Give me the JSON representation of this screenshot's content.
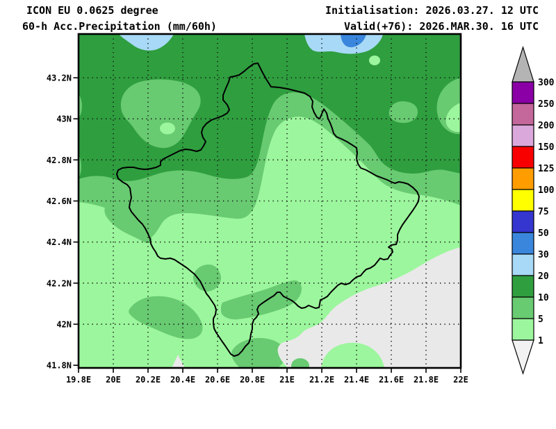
{
  "header": {
    "model": "ICON EU 0.0625 degree",
    "product": "60-h Acc.Precipitation (mm/60h)",
    "initialisation": "Initialisation: 2026.03.27. 12 UTC",
    "valid": "Valid(+76): 2026.MAR.30. 16 UTC"
  },
  "map": {
    "lat_ticks": [
      "43.2N",
      "43N",
      "42.8N",
      "42.6N",
      "42.4N",
      "42.2N",
      "42N",
      "41.8N"
    ],
    "lon_ticks": [
      "19.8E",
      "20E",
      "20.2E",
      "20.4E",
      "20.6E",
      "20.8E",
      "21E",
      "21.2E",
      "21.4E",
      "21.6E",
      "21.8E",
      "22E"
    ],
    "region_outline": "Kosovo"
  },
  "colorbar": {
    "unit": "mm/60h",
    "levels": [
      "300",
      "250",
      "200",
      "150",
      "125",
      "100",
      "75",
      "50",
      "30",
      "20",
      "10",
      "5",
      "1"
    ],
    "segment_colors_top_to_bottom": [
      "#8a00a6",
      "#c4679b",
      "#dba8dc",
      "#f80000",
      "#ff9c00",
      "#ffff00",
      "#3535d0",
      "#3a86dd",
      "#a8d9f6",
      "#2f9e3f",
      "#68ca71",
      "#9cf69d"
    ],
    "overflow_color": "#b4b4b4",
    "underflow_color": "#f2f2f2"
  },
  "palette": {
    "dark_green": "#2f9e3f",
    "medium_green": "#68ca71",
    "light_green": "#9cf69d",
    "light_blue": "#a8d9f6",
    "medium_blue": "#3a86dd",
    "below_1_gray": "#e9e9e9",
    "background": "#ffffff",
    "line_black": "#000000"
  }
}
